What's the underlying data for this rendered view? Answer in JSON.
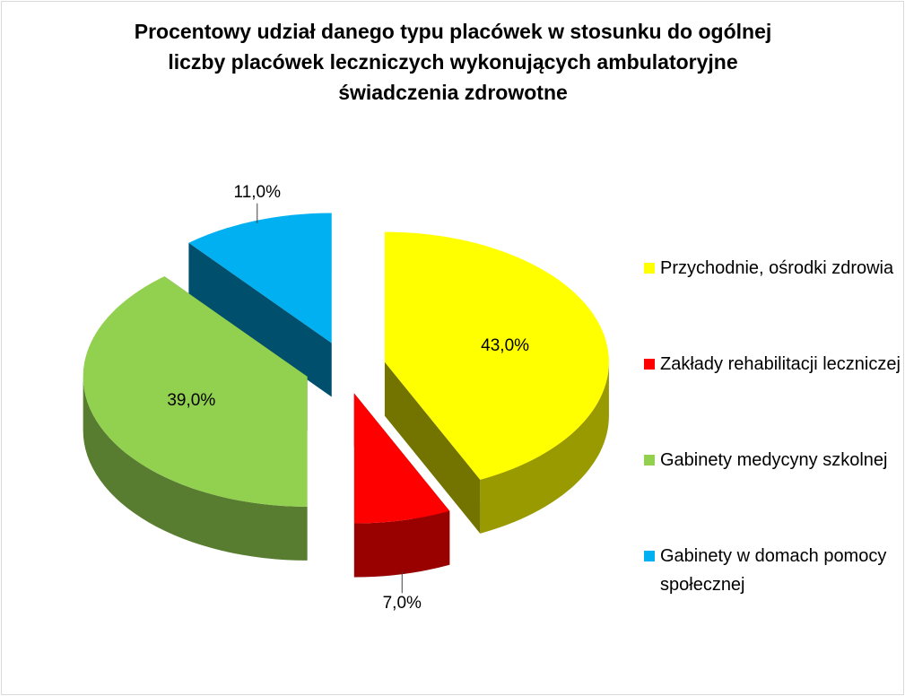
{
  "chart_data": {
    "type": "pie",
    "title": "Procentowy udział danego typu placówek w stosunku do ogólnej liczby placówek leczniczych wykonujących ambulatoryjne świadczenia zdrowotne",
    "categories": [
      "Przychodnie, ośrodki zdrowia",
      "Zakłady rehabilitacji leczniczej",
      "Gabinety medycyny szkolnej",
      "Gabinety w domach pomocy społecznej"
    ],
    "values": [
      43,
      7,
      39,
      11
    ],
    "value_labels": [
      "43,0%",
      "7,0%",
      "39,0%",
      "11,0%"
    ],
    "colors": [
      "#ffff00",
      "#ff0000",
      "#92d050",
      "#00b0f0"
    ],
    "legend": "right"
  }
}
